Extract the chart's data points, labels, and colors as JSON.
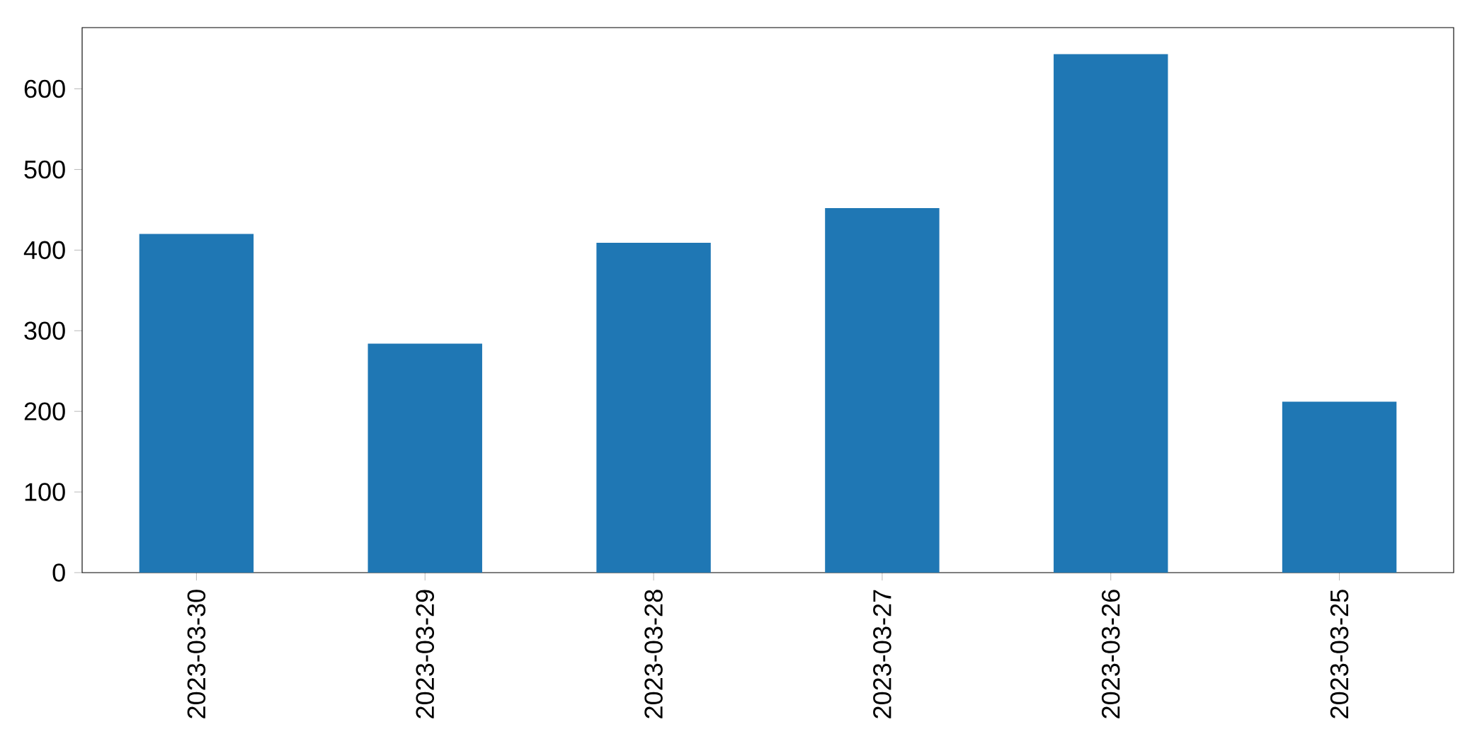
{
  "chart_data": {
    "type": "bar",
    "categories": [
      "2023-03-30",
      "2023-03-29",
      "2023-03-28",
      "2023-03-27",
      "2023-03-26",
      "2023-03-25"
    ],
    "values": [
      420,
      284,
      409,
      452,
      643,
      212
    ],
    "color": "#1f77b4",
    "ylim": [
      0,
      676
    ],
    "yticks": [
      0,
      100,
      200,
      300,
      400,
      500,
      600
    ],
    "grid": false
  }
}
